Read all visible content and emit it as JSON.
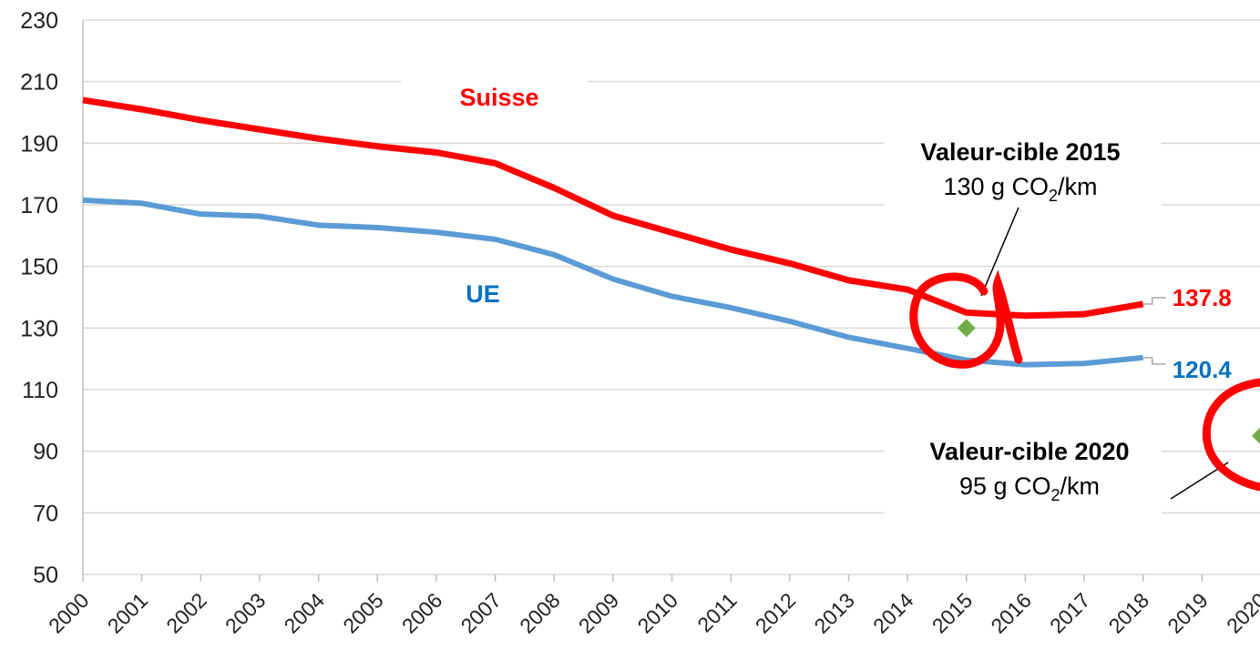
{
  "chart_data": {
    "type": "line",
    "categories": [
      "2000",
      "2001",
      "2002",
      "2003",
      "2004",
      "2005",
      "2006",
      "2007",
      "2008",
      "2009",
      "2010",
      "2011",
      "2012",
      "2013",
      "2014",
      "2015",
      "2016",
      "2017",
      "2018",
      "2019",
      "2020"
    ],
    "series": [
      {
        "name": "Suisse",
        "color": "#ff0000",
        "values": [
          204,
          201,
          197.5,
          194.5,
          191.5,
          189,
          187,
          183.5,
          175.5,
          166.5,
          161,
          155.5,
          151,
          145.5,
          142.5,
          135,
          134,
          134.5,
          137.8,
          null,
          null
        ]
      },
      {
        "name": "UE",
        "color": "#5b9bd5",
        "values": [
          171.5,
          170.5,
          167,
          166.3,
          163.4,
          162.6,
          161.1,
          158.8,
          153.8,
          145.9,
          140.3,
          136.6,
          132.2,
          127,
          123.4,
          119.6,
          118.1,
          118.5,
          120.4,
          null,
          null
        ]
      }
    ],
    "annotations": [
      {
        "x": "2015",
        "y": 130,
        "title": "Valeur-cible 2015",
        "text": [
          "130 g CO",
          "2",
          "/km"
        ]
      },
      {
        "x": "2020",
        "y": 95,
        "title": "Valeur-cible 2020",
        "text": [
          "95 g CO",
          "2",
          "/km"
        ]
      }
    ],
    "marker_color": "#70ad47",
    "ylim": [
      50,
      230
    ],
    "yticks": [
      50,
      70,
      90,
      110,
      130,
      150,
      170,
      190,
      210,
      230
    ],
    "grid": true
  }
}
